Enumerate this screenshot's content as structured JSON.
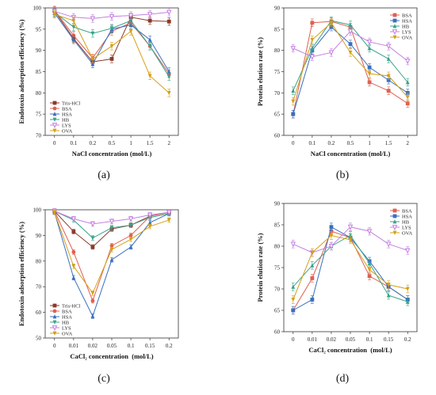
{
  "chart_data": [
    {
      "panel": "(a)",
      "type": "line",
      "ylabel": "Endotoxin adsorption efficiency (%)",
      "xlabel": "NaCl concentration (mol/L)",
      "categories": [
        "0",
        "0.1",
        "0.2",
        "0.5",
        "1",
        "1.5",
        "2"
      ],
      "ylim": [
        70,
        100
      ],
      "yticks": [
        70,
        75,
        80,
        85,
        90,
        95,
        100
      ],
      "legend_position": "lower-left",
      "series": [
        {
          "name": "Tris-HCl",
          "color": "#8b3a2b",
          "marker": "square",
          "values": [
            99.3,
            92.8,
            87.3,
            88.0,
            97.8,
            97.0,
            96.8
          ]
        },
        {
          "name": "BSA",
          "color": "#e06050",
          "marker": "circle",
          "values": [
            99.5,
            93.5,
            88.2,
            94.5,
            96.5,
            91.0,
            84.5
          ]
        },
        {
          "name": "HSA",
          "color": "#3a6fbf",
          "marker": "triangle-up",
          "values": [
            98.8,
            92.5,
            86.8,
            95.0,
            96.0,
            92.5,
            85.0
          ]
        },
        {
          "name": "HB",
          "color": "#3aa38a",
          "marker": "triangle-down",
          "values": [
            99.0,
            95.5,
            94.0,
            95.2,
            97.0,
            91.0,
            83.8
          ]
        },
        {
          "name": "LYS",
          "color": "#c47fe0",
          "marker": "triangle-down-open",
          "values": [
            99.2,
            97.8,
            97.5,
            98.0,
            98.2,
            98.5,
            99.0
          ]
        },
        {
          "name": "OVA",
          "color": "#d4a017",
          "marker": "triangle-down",
          "values": [
            98.5,
            97.0,
            88.0,
            91.0,
            94.5,
            84.0,
            80.0
          ]
        }
      ]
    },
    {
      "panel": "(b)",
      "type": "line",
      "ylabel": "Protein elution rate (%)",
      "xlabel": "NaCl concentration (mol/L)",
      "categories": [
        "0",
        "0.1",
        "0.2",
        "0.5",
        "1",
        "1.5",
        "2"
      ],
      "ylim": [
        60,
        90
      ],
      "yticks": [
        60,
        65,
        70,
        75,
        80,
        85,
        90
      ],
      "legend_position": "top-right",
      "series": [
        {
          "name": "BSA",
          "color": "#e06050",
          "marker": "square",
          "values": [
            65.0,
            86.5,
            86.8,
            85.5,
            72.5,
            70.5,
            67.5
          ]
        },
        {
          "name": "HSA",
          "color": "#3a6fbf",
          "marker": "square",
          "values": [
            65.0,
            80.0,
            85.5,
            81.5,
            76.0,
            73.0,
            70.0
          ]
        },
        {
          "name": "HB",
          "color": "#3aa38a",
          "marker": "triangle-up",
          "values": [
            70.5,
            80.5,
            87.0,
            86.0,
            80.5,
            78.0,
            72.5
          ]
        },
        {
          "name": "LYS",
          "color": "#c47fe0",
          "marker": "triangle-down-open",
          "values": [
            80.5,
            78.5,
            79.5,
            84.5,
            82.0,
            81.0,
            77.5
          ]
        },
        {
          "name": "OVA",
          "color": "#d4a017",
          "marker": "triangle-down",
          "values": [
            68.0,
            82.5,
            86.5,
            79.5,
            74.5,
            74.0,
            69.0
          ]
        }
      ]
    },
    {
      "panel": "(c)",
      "type": "line",
      "ylabel": "Endotoxin adsorption efficiency (%)",
      "xlabel": "CaCl₂ concentration  (mol/L)",
      "categories": [
        "0",
        "0.01",
        "0.02",
        "0.05",
        "0.1",
        "0.15",
        "0.2"
      ],
      "ylim": [
        50,
        100
      ],
      "yticks": [
        50,
        60,
        70,
        80,
        90,
        100
      ],
      "legend_position": "lower-left",
      "series": [
        {
          "name": "Tris-HCl",
          "color": "#8b3a2b",
          "marker": "square",
          "values": [
            99.5,
            91.5,
            85.5,
            92.5,
            94.0,
            97.5,
            99.0
          ]
        },
        {
          "name": "BSA",
          "color": "#e06050",
          "marker": "circle",
          "values": [
            99.5,
            83.5,
            64.5,
            86.0,
            90.0,
            97.5,
            99.0
          ]
        },
        {
          "name": "HSA",
          "color": "#3a6fbf",
          "marker": "triangle-up",
          "values": [
            99.0,
            73.5,
            58.5,
            80.5,
            85.5,
            95.0,
            98.5
          ]
        },
        {
          "name": "HB",
          "color": "#3aa38a",
          "marker": "triangle-down",
          "values": [
            99.5,
            96.0,
            89.0,
            93.0,
            94.0,
            97.0,
            98.5
          ]
        },
        {
          "name": "LYS",
          "color": "#c47fe0",
          "marker": "triangle-down-open",
          "values": [
            99.5,
            96.5,
            94.5,
            95.5,
            96.5,
            98.0,
            99.0
          ]
        },
        {
          "name": "OVA",
          "color": "#d4a017",
          "marker": "triangle-down",
          "values": [
            99.0,
            78.0,
            67.5,
            84.5,
            88.5,
            93.5,
            96.0
          ]
        }
      ]
    },
    {
      "panel": "(d)",
      "type": "line",
      "ylabel": "Protein elution rate (%)",
      "xlabel": "CaCl₂ concentration  (mol/L)",
      "categories": [
        "0",
        "0.01",
        "0.02",
        "0.05",
        "0.1",
        "0.15",
        "0.2"
      ],
      "ylim": [
        60,
        90
      ],
      "yticks": [
        60,
        65,
        70,
        75,
        80,
        85,
        90
      ],
      "legend_position": "top-right",
      "series": [
        {
          "name": "BSA",
          "color": "#e06050",
          "marker": "square",
          "values": [
            65.0,
            72.5,
            83.5,
            82.0,
            73.0,
            70.5,
            67.5
          ]
        },
        {
          "name": "HSA",
          "color": "#3a6fbf",
          "marker": "square",
          "values": [
            65.0,
            67.5,
            84.5,
            82.0,
            76.5,
            70.5,
            67.5
          ]
        },
        {
          "name": "HB",
          "color": "#3aa38a",
          "marker": "triangle-up",
          "values": [
            70.5,
            75.5,
            80.0,
            82.5,
            76.0,
            68.5,
            67.0
          ]
        },
        {
          "name": "LYS",
          "color": "#c47fe0",
          "marker": "triangle-down-open",
          "values": [
            80.5,
            78.5,
            80.0,
            84.5,
            83.5,
            80.5,
            79.0
          ]
        },
        {
          "name": "OVA",
          "color": "#d4a017",
          "marker": "triangle-down",
          "values": [
            67.5,
            78.5,
            82.5,
            81.5,
            74.5,
            71.0,
            70.0
          ]
        }
      ]
    }
  ]
}
